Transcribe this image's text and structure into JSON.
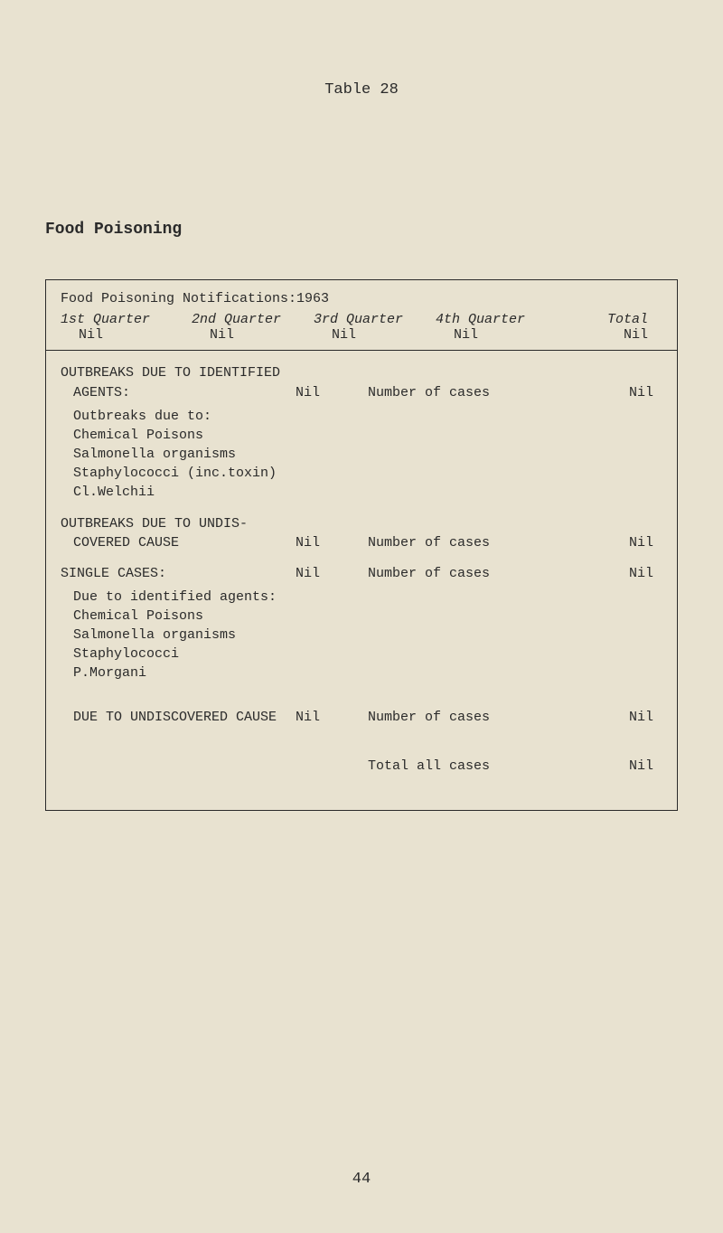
{
  "tableNumber": "Table 28",
  "sectionTitle": "Food Poisoning",
  "headerTitle": "Food Poisoning Notifications:1963",
  "quarters": {
    "q1": {
      "label": "1st Quarter",
      "value": "Nil"
    },
    "q2": {
      "label": "2nd Quarter",
      "value": "Nil"
    },
    "q3": {
      "label": "3rd Quarter",
      "value": "Nil"
    },
    "q4": {
      "label": "4th Quarter",
      "value": "Nil"
    },
    "total": {
      "label": "Total",
      "value": "Nil"
    }
  },
  "section1": {
    "heading": "OUTBREAKS DUE TO IDENTIFIED",
    "row": {
      "label": "AGENTS:",
      "nil": "Nil",
      "desc": "Number of cases",
      "val": "Nil"
    },
    "sub1": "Outbreaks due to:",
    "sub2": "Chemical Poisons",
    "sub3": "Salmonella organisms",
    "sub4": "Staphylococci (inc.toxin)",
    "sub5": "Cl.Welchii"
  },
  "section2": {
    "heading": "OUTBREAKS DUE TO UNDIS-",
    "row": {
      "label": "COVERED CAUSE",
      "nil": "Nil",
      "desc": "Number of cases",
      "val": "Nil"
    }
  },
  "section3": {
    "row": {
      "label": "SINGLE CASES:",
      "nil": "Nil",
      "desc": "Number of cases",
      "val": "Nil"
    },
    "sub1": "Due to identified agents:",
    "sub2": "Chemical Poisons",
    "sub3": "Salmonella organisms",
    "sub4": "Staphylococci",
    "sub5": "P.Morgani"
  },
  "section4": {
    "row": {
      "label": "DUE TO UNDISCOVERED CAUSE",
      "nil": "Nil",
      "desc": "Number of cases",
      "val": "Nil"
    }
  },
  "section5": {
    "row": {
      "label": "",
      "nil": "",
      "desc": "Total all cases",
      "val": "Nil"
    }
  },
  "pageNumber": "44",
  "colors": {
    "background": "#e8e2d0",
    "text": "#2a2a2a",
    "border": "#2a2a2a"
  }
}
